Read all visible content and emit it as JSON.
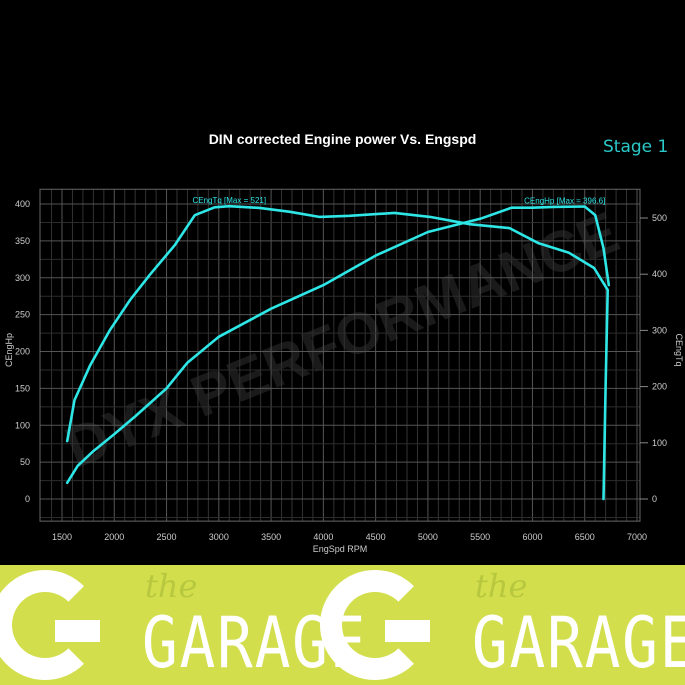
{
  "chart_data": {
    "type": "line",
    "title": "DIN corrected Engine power Vs. Engspd",
    "badge": "Stage 1",
    "xlabel": "EngSpd RPM",
    "ylabel_left": "CEngHp",
    "ylabel_right": "CEngTq",
    "xlim": [
      1300,
      7150
    ],
    "ylim_left": [
      -30,
      420
    ],
    "ylim_right": [
      -50,
      560
    ],
    "xticks": [
      1500,
      2000,
      2500,
      3000,
      3500,
      4000,
      4500,
      5000,
      5500,
      6000,
      6500,
      7000
    ],
    "yticks_left": [
      0,
      50,
      100,
      150,
      200,
      250,
      300,
      350,
      400
    ],
    "yticks_right": [
      0,
      100,
      200,
      300,
      400,
      500
    ],
    "grid": true,
    "background": "#000000",
    "line_color": "#2ee6e6",
    "series": [
      {
        "name": "CEngTq",
        "label": "CEngTq [Max = 521]",
        "axis": "right",
        "x": [
          1550,
          1620,
          1770,
          1960,
          2150,
          2340,
          2580,
          2770,
          2960,
          3100,
          3390,
          3680,
          3960,
          4250,
          4680,
          5020,
          5400,
          5780,
          6060,
          6350,
          6590,
          6720,
          6700,
          6680
        ],
        "y": [
          103,
          176,
          238,
          301,
          354,
          399,
          452,
          505,
          519,
          521,
          518,
          511,
          502,
          504,
          509,
          502,
          489,
          482,
          455,
          438,
          411,
          372,
          200,
          0
        ]
      },
      {
        "name": "CEngHp",
        "label": "CEngHp [Max = 396.6]",
        "axis": "left",
        "x": [
          1550,
          1650,
          1800,
          2000,
          2200,
          2500,
          2700,
          3000,
          3500,
          4000,
          4500,
          5000,
          5500,
          5800,
          6000,
          6200,
          6500,
          6600,
          6680,
          6730
        ],
        "y": [
          22,
          45,
          65,
          88,
          112,
          150,
          185,
          220,
          258,
          290,
          330,
          362,
          380,
          395,
          395,
          396,
          396.6,
          385,
          340,
          290
        ]
      }
    ]
  },
  "watermark": "DYX PERFORMANCE",
  "banner": {
    "logos": [
      {
        "small": "the",
        "big": "GARAGE"
      },
      {
        "small": "the",
        "big": "GARAGE"
      }
    ],
    "color": "#d2de4c"
  }
}
